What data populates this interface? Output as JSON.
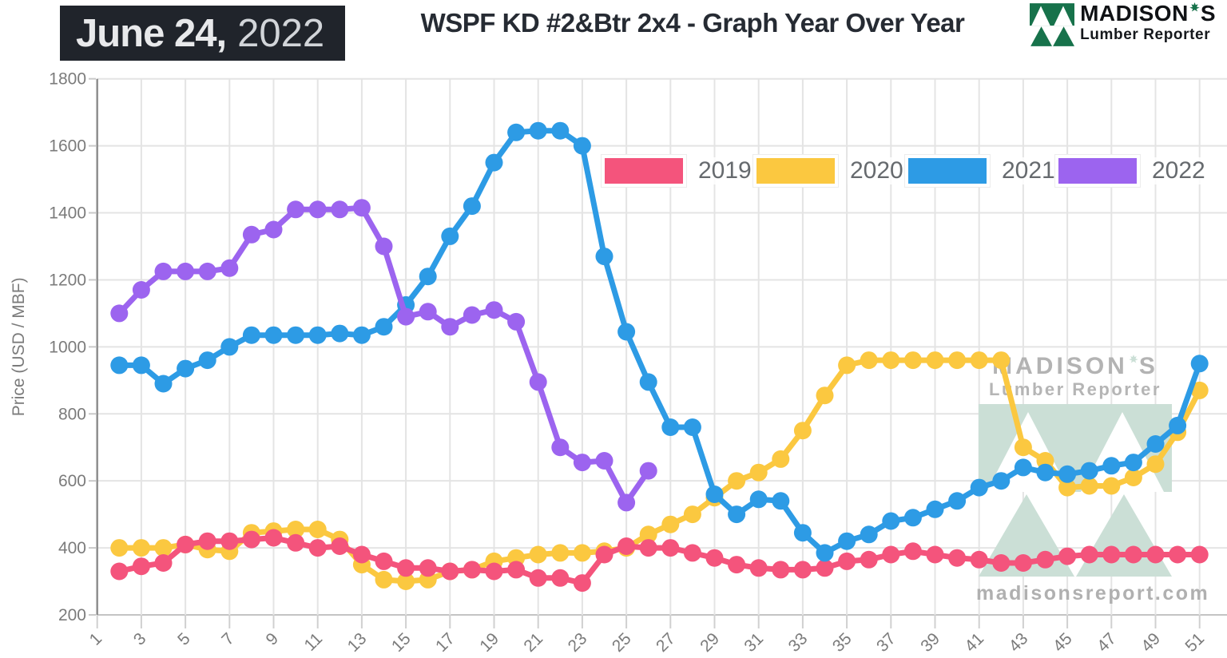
{
  "header": {
    "date_badge": {
      "bold": "June 24,",
      "year": "2022"
    },
    "title": "WSPF KD #2&Btr 2x4 - Graph Year Over Year",
    "logo": {
      "brand_pre": "MADISON",
      "brand_post": "S",
      "subtitle": "Lumber Reporter"
    }
  },
  "watermark": {
    "brand_pre": "MADISON",
    "brand_post": "S",
    "subtitle": "Lumber Reporter",
    "url": "madisonsreport.com"
  },
  "colors": {
    "c2019": "#F4547C",
    "c2020": "#FBC840",
    "c2021": "#2D9BE5",
    "c2022": "#9C64EF",
    "logo_green": "#17724B",
    "watermark_green": "#CBDFD6",
    "grid": "#E4E4E4",
    "grid_bottom": "#C4C4C4",
    "axis": "#8E8E8E",
    "tick_text": "#7B7B7B"
  },
  "chart_data": {
    "type": "line",
    "title": "WSPF KD #2&Btr 2x4 - Graph Year Over Year",
    "xlabel": "",
    "ylabel": "Price (USD / MBF)",
    "ylim": [
      200,
      1800
    ],
    "ytick_step": 200,
    "yticks": [
      200,
      400,
      600,
      800,
      1000,
      1200,
      1400,
      1600,
      1800
    ],
    "xticks": [
      1,
      3,
      5,
      7,
      9,
      11,
      13,
      15,
      17,
      19,
      21,
      23,
      25,
      27,
      29,
      31,
      33,
      35,
      37,
      39,
      41,
      43,
      45,
      47,
      49,
      51
    ],
    "x_axis_unit": "week of year",
    "grid": true,
    "legend_position": "top-right-inside",
    "first_data_week": 2,
    "series": [
      {
        "name": "2019",
        "color_key": "c2019",
        "values": [
          330,
          345,
          355,
          410,
          420,
          420,
          425,
          430,
          415,
          400,
          405,
          380,
          360,
          340,
          340,
          330,
          335,
          330,
          335,
          310,
          310,
          295,
          380,
          405,
          400,
          400,
          385,
          370,
          350,
          340,
          335,
          335,
          340,
          360,
          365,
          380,
          390,
          380,
          370,
          365,
          355,
          355,
          365,
          375,
          380,
          380,
          380,
          380,
          380,
          380
        ]
      },
      {
        "name": "2020",
        "color_key": "c2020",
        "values": [
          400,
          400,
          400,
          410,
          395,
          390,
          445,
          450,
          455,
          455,
          425,
          350,
          305,
          300,
          305,
          330,
          335,
          360,
          370,
          380,
          385,
          385,
          390,
          400,
          440,
          470,
          500,
          550,
          600,
          625,
          665,
          750,
          855,
          945,
          960,
          960,
          960,
          960,
          960,
          960,
          960,
          700,
          660,
          580,
          585,
          585,
          610,
          650,
          745,
          870
        ]
      },
      {
        "name": "2021",
        "color_key": "c2021",
        "values": [
          945,
          945,
          890,
          935,
          960,
          1000,
          1035,
          1035,
          1035,
          1035,
          1040,
          1035,
          1060,
          1125,
          1210,
          1330,
          1420,
          1550,
          1640,
          1645,
          1645,
          1600,
          1270,
          1045,
          895,
          760,
          760,
          560,
          500,
          545,
          540,
          445,
          385,
          420,
          440,
          480,
          490,
          515,
          540,
          580,
          600,
          640,
          625,
          620,
          630,
          645,
          655,
          710,
          765,
          950
        ]
      },
      {
        "name": "2022",
        "color_key": "c2022",
        "values": [
          1100,
          1170,
          1225,
          1225,
          1225,
          1235,
          1335,
          1350,
          1410,
          1410,
          1410,
          1415,
          1300,
          1090,
          1105,
          1060,
          1095,
          1110,
          1075,
          895,
          700,
          655,
          660,
          535,
          630
        ]
      }
    ]
  }
}
